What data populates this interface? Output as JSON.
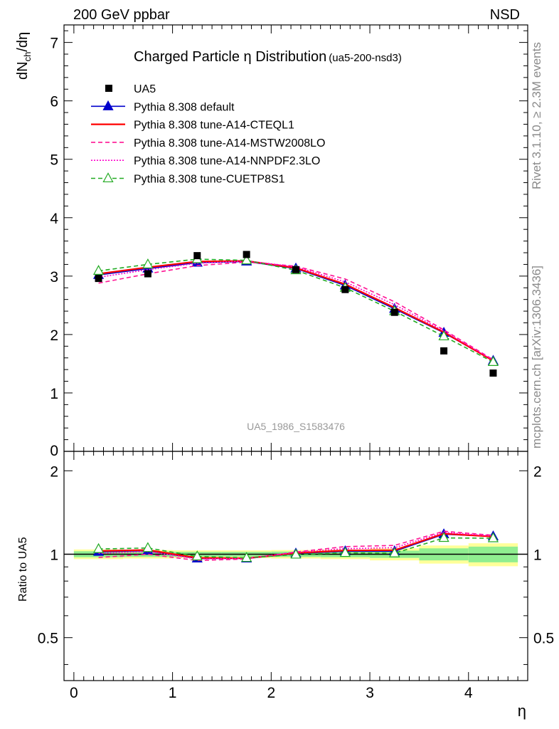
{
  "header": {
    "left": "200 GeV ppbar",
    "right": "NSD"
  },
  "side_texts": {
    "rivet": "Rivet 3.1.10, ≥ 2.3M events",
    "mcplots": "mcplots.cern.ch [arXiv:1306.3436]"
  },
  "chart_data": [
    {
      "type": "line",
      "panel": "main",
      "title_main": "Charged Particle",
      "title_eta": "η",
      "title_rest": "Distribution",
      "title_tag": "(ua5-200-nsd3)",
      "ylabel_main": "dN",
      "ylabel_sub": "ch",
      "ylabel_rest": "/dη",
      "watermark": "UA5_1986_S1583476",
      "xlim": [
        -0.1,
        4.6
      ],
      "ylim": [
        0,
        7.3
      ],
      "y_tick_labels": [
        "1",
        "2",
        "3",
        "4",
        "5",
        "6",
        "7"
      ],
      "y_tick_values": [
        1,
        2,
        3,
        4,
        5,
        6,
        7
      ],
      "y_bottom_label": "0",
      "x": [
        0.25,
        0.75,
        1.25,
        1.75,
        2.25,
        2.75,
        3.25,
        3.75,
        4.25
      ],
      "data": {
        "name": "UA5",
        "values": [
          2.96,
          3.04,
          3.35,
          3.37,
          3.11,
          2.77,
          2.38,
          1.72,
          1.34
        ],
        "color": "#000000"
      },
      "series": [
        {
          "name": "Pythia 8.308 default",
          "color": "#0000cc",
          "style": "solid",
          "marker": "triangle-filled",
          "values": [
            3.02,
            3.13,
            3.23,
            3.25,
            3.13,
            2.84,
            2.44,
            2.03,
            1.55
          ]
        },
        {
          "name": "Pythia 8.308 tune-A14-CTEQL1",
          "color": "#ff0000",
          "style": "solid",
          "marker": "none",
          "values": [
            3.04,
            3.15,
            3.25,
            3.26,
            3.14,
            2.86,
            2.46,
            2.04,
            1.55
          ]
        },
        {
          "name": "Pythia 8.308 tune-A14-MSTW2008LO",
          "color": "#ff1493",
          "style": "dashed",
          "marker": "none",
          "values": [
            2.88,
            3.04,
            3.18,
            3.24,
            3.17,
            2.95,
            2.56,
            2.08,
            1.57
          ]
        },
        {
          "name": "Pythia 8.308 tune-A14-NNPDF2.3LO",
          "color": "#ff00cc",
          "style": "dotted",
          "marker": "none",
          "values": [
            2.98,
            3.11,
            3.22,
            3.26,
            3.16,
            2.9,
            2.51,
            2.06,
            1.56
          ]
        },
        {
          "name": "Pythia 8.308 tune-CUETP8S1",
          "color": "#22aa22",
          "style": "dashed",
          "marker": "triangle-open",
          "values": [
            3.09,
            3.2,
            3.29,
            3.27,
            3.1,
            2.8,
            2.4,
            1.97,
            1.53
          ]
        }
      ]
    },
    {
      "type": "line",
      "panel": "ratio",
      "ylabel": "Ratio to UA5",
      "xlabel": "η",
      "xlim": [
        -0.1,
        4.6
      ],
      "ylim": [
        0.35,
        2.35
      ],
      "x_tick_labels": [
        "0",
        "1",
        "2",
        "3",
        "4"
      ],
      "x_tick_values": [
        0,
        1,
        2,
        3,
        4
      ],
      "y_tick_labels": [
        "0.5",
        "1",
        "2"
      ],
      "y_tick_values": [
        0.5,
        1,
        2
      ],
      "x": [
        0.25,
        0.75,
        1.25,
        1.75,
        2.25,
        2.75,
        3.25,
        3.75,
        4.25
      ],
      "bands": {
        "edges": [
          0,
          0.5,
          1.0,
          1.5,
          2.0,
          2.5,
          3.0,
          3.5,
          4.0,
          4.5
        ],
        "stat_rel": [
          0.025,
          0.022,
          0.02,
          0.02,
          0.022,
          0.025,
          0.03,
          0.05,
          0.065
        ],
        "total_rel": [
          0.04,
          0.035,
          0.032,
          0.032,
          0.035,
          0.04,
          0.05,
          0.075,
          0.095
        ],
        "stat_color": "#90ee90",
        "total_color": "#ffff99"
      },
      "series": [
        {
          "name": "Pythia 8.308 default",
          "values": [
            1.02,
            1.03,
            0.965,
            0.965,
            1.006,
            1.025,
            1.025,
            1.18,
            1.16
          ]
        },
        {
          "name": "Pythia 8.308 tune-A14-CTEQL1",
          "values": [
            1.027,
            1.036,
            0.97,
            0.967,
            1.01,
            1.032,
            1.034,
            1.186,
            1.157
          ]
        },
        {
          "name": "Pythia 8.308 tune-A14-MSTW2008LO",
          "values": [
            0.973,
            1.0,
            0.949,
            0.961,
            1.019,
            1.065,
            1.076,
            1.21,
            1.17
          ]
        },
        {
          "name": "Pythia 8.308 tune-A14-NNPDF2.3LO",
          "values": [
            1.007,
            1.023,
            0.961,
            0.967,
            1.016,
            1.047,
            1.055,
            1.198,
            1.164
          ]
        },
        {
          "name": "Pythia 8.308 tune-CUETP8S1",
          "values": [
            1.044,
            1.053,
            0.982,
            0.97,
            0.997,
            1.011,
            1.008,
            1.145,
            1.142
          ]
        }
      ]
    }
  ]
}
